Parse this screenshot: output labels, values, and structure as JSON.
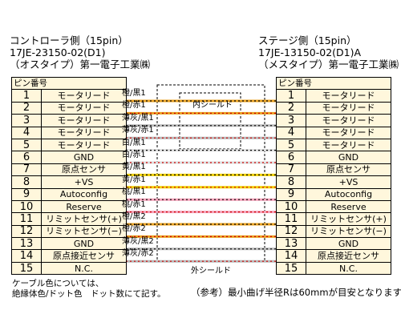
{
  "left_connector": {
    "title": "コントローラ側（15pin）",
    "part_no": "17JE-23150-02(D1)",
    "maker": "（オスタイプ）第一電子工業㈱"
  },
  "right_connector": {
    "title": "ステージ側（15pin）",
    "part_no": "17JE-13150-02(D1)A",
    "maker": "（メスタイプ）第一電子工業㈱"
  },
  "table_header": "ピン番号",
  "pins": [
    {
      "no": "1",
      "signal": "モータリード"
    },
    {
      "no": "2",
      "signal": "モータリード"
    },
    {
      "no": "3",
      "signal": "モータリード"
    },
    {
      "no": "4",
      "signal": "モータリード"
    },
    {
      "no": "5",
      "signal": "モータリード"
    },
    {
      "no": "6",
      "signal": "GND"
    },
    {
      "no": "7",
      "signal": "原点センサ"
    },
    {
      "no": "8",
      "signal": "+VS"
    },
    {
      "no": "9",
      "signal": "Autoconfig"
    },
    {
      "no": "10",
      "signal": "Reserve"
    },
    {
      "no": "11",
      "signal": "リミットセンサ(+)"
    },
    {
      "no": "12",
      "signal": "リミットセンサ(−)"
    },
    {
      "no": "13",
      "signal": "GND"
    },
    {
      "no": "14",
      "signal": "原点接近センサ"
    },
    {
      "no": "15",
      "signal": "N.C."
    }
  ],
  "wires": [
    {
      "label": "橙/黒1",
      "base": "#e8a020",
      "dot": "#000000"
    },
    {
      "label": "橙/赤1",
      "base": "#e8a020",
      "dot": "#d00000"
    },
    {
      "label": "薄灰/黒1",
      "base": "#b8b8b8",
      "dot": "#000000"
    },
    {
      "label": "薄灰/赤1",
      "base": "#b8b8b8",
      "dot": "#d00000"
    },
    {
      "label": "白/黒1",
      "base": "#dddddd",
      "dot": "#000000"
    },
    {
      "label": "白/赤1",
      "base": "#dddddd",
      "dot": "#d00000"
    },
    {
      "label": "黄/黒1",
      "base": "#f0d000",
      "dot": "#000000"
    },
    {
      "label": "黄/赤1",
      "base": "#f0d000",
      "dot": "#d00000"
    },
    {
      "label": "桃/黒1",
      "base": "#f4a0b8",
      "dot": "#000000"
    },
    {
      "label": "桃/赤1",
      "base": "#f4a0b8",
      "dot": "#d00000"
    },
    {
      "label": "橙/黒2",
      "base": "#e8a020",
      "dot": "#000000"
    },
    {
      "label": "橙/赤2",
      "base": "#e8a020",
      "dot": "#d00000"
    },
    {
      "label": "薄灰/黒2",
      "base": "#b8b8b8",
      "dot": "#000000"
    },
    {
      "label": "薄灰/赤2",
      "base": "#b8b8b8",
      "dot": "#d00000"
    }
  ],
  "inner_shield_label": "内シールド",
  "outer_shield_label": "外シールド",
  "note_lines": [
    "ケーブル色については、",
    "絶縁体色/ドット色　ドット数にて記す。"
  ],
  "bend_note": "（参考）最小曲げ半径Rは60mmが目安となります。"
}
